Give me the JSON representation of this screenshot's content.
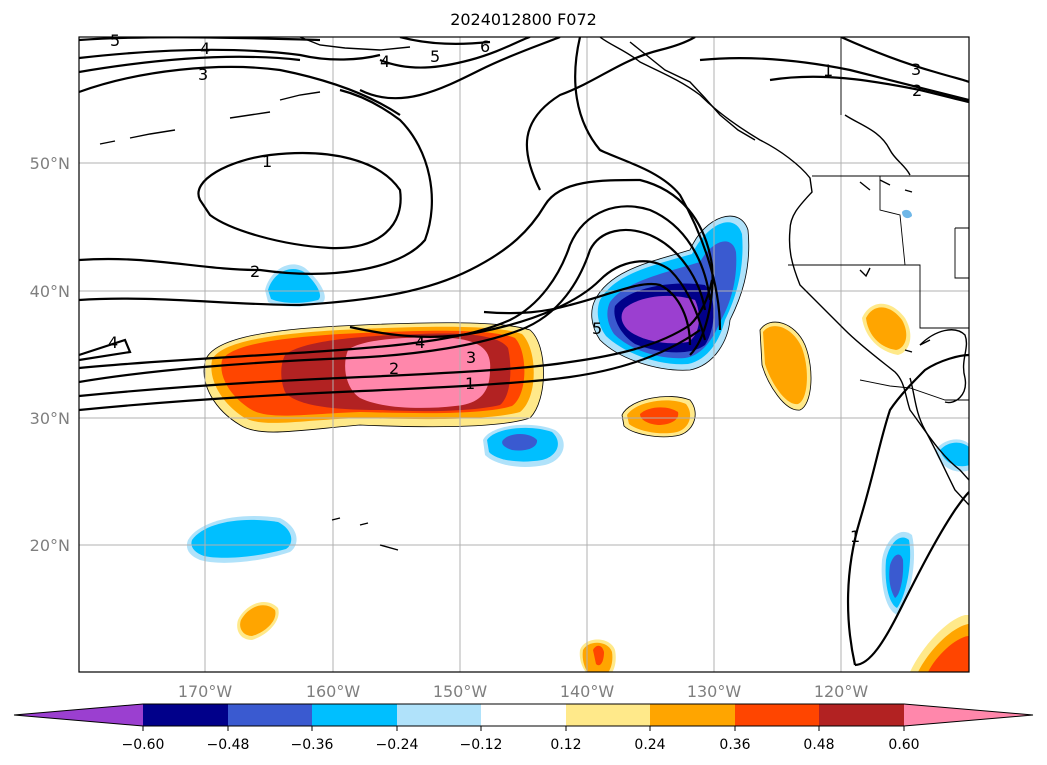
{
  "title": "2024012800 F072",
  "map": {
    "lon_range": [
      -180,
      -110
    ],
    "lat_range": [
      10,
      60
    ],
    "lon_ticks": [
      "170°W",
      "160°W",
      "150°W",
      "140°W",
      "130°W",
      "120°W"
    ],
    "lat_ticks": [
      "50°N",
      "40°N",
      "30°N",
      "20°N"
    ],
    "grid": true
  },
  "colorbar": {
    "ticks": [
      "−0.60",
      "−0.48",
      "−0.36",
      "−0.24",
      "−0.12",
      "0.12",
      "0.24",
      "0.36",
      "0.48",
      "0.60"
    ],
    "colors": [
      "#9b3fd0",
      "#01008a",
      "#3a5ad0",
      "#00bfff",
      "#b0e2fa",
      "#ffffff",
      "#ffe98a",
      "#ffa500",
      "#ff4500",
      "#b22222",
      "#ff87ab"
    ],
    "extend": "both"
  },
  "contour_labels": [
    "5",
    "4",
    "3",
    "6",
    "4",
    "5",
    "1",
    "3",
    "2",
    "1",
    "2",
    "4",
    "5",
    "4",
    "2",
    "3",
    "1",
    "1"
  ]
}
